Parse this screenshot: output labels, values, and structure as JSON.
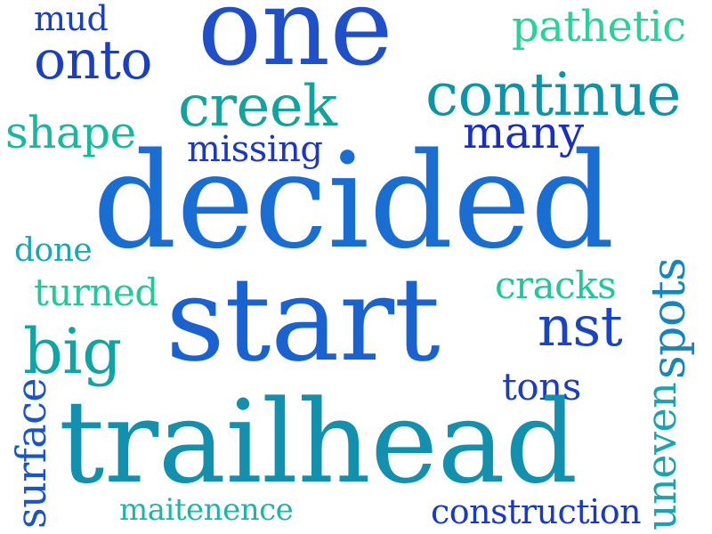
{
  "words": {
    "mud": {
      "text": "mud",
      "color": "#1a3fbf"
    },
    "one": {
      "text": "one",
      "color": "#1f4fc9"
    },
    "pathetic": {
      "text": "pathetic",
      "color": "#2ad29a"
    },
    "onto": {
      "text": "onto",
      "color": "#1a3fbf"
    },
    "continue": {
      "text": "continue",
      "color": "#0e93a8"
    },
    "creek": {
      "text": "creek",
      "color": "#13a39f"
    },
    "shape": {
      "text": "shape",
      "color": "#18b7a0"
    },
    "many": {
      "text": "many",
      "color": "#1a2fbf"
    },
    "missing": {
      "text": "missing",
      "color": "#1b38c2"
    },
    "decided": {
      "text": "decided",
      "color": "#1a6ed1"
    },
    "done": {
      "text": "done",
      "color": "#1aa7b3"
    },
    "spots": {
      "text": "spots",
      "color": "#1585c0"
    },
    "turned": {
      "text": "turned",
      "color": "#21c99a"
    },
    "cracks": {
      "text": "cracks",
      "color": "#22c69e"
    },
    "start": {
      "text": "start",
      "color": "#1a62d0"
    },
    "nst": {
      "text": "nst",
      "color": "#1a44c4"
    },
    "big": {
      "text": "big",
      "color": "#12a3a5"
    },
    "tons": {
      "text": "tons",
      "color": "#1a3dc2"
    },
    "surface": {
      "text": "surface",
      "color": "#1955c9"
    },
    "uneven": {
      "text": "uneven",
      "color": "#1aa3b0"
    },
    "trailhead": {
      "text": "trailhead",
      "color": "#1290ad"
    },
    "maitenence": {
      "text": "maitenence",
      "color": "#1fb5a6"
    },
    "construction": {
      "text": "construction",
      "color": "#1a3ac2"
    }
  }
}
